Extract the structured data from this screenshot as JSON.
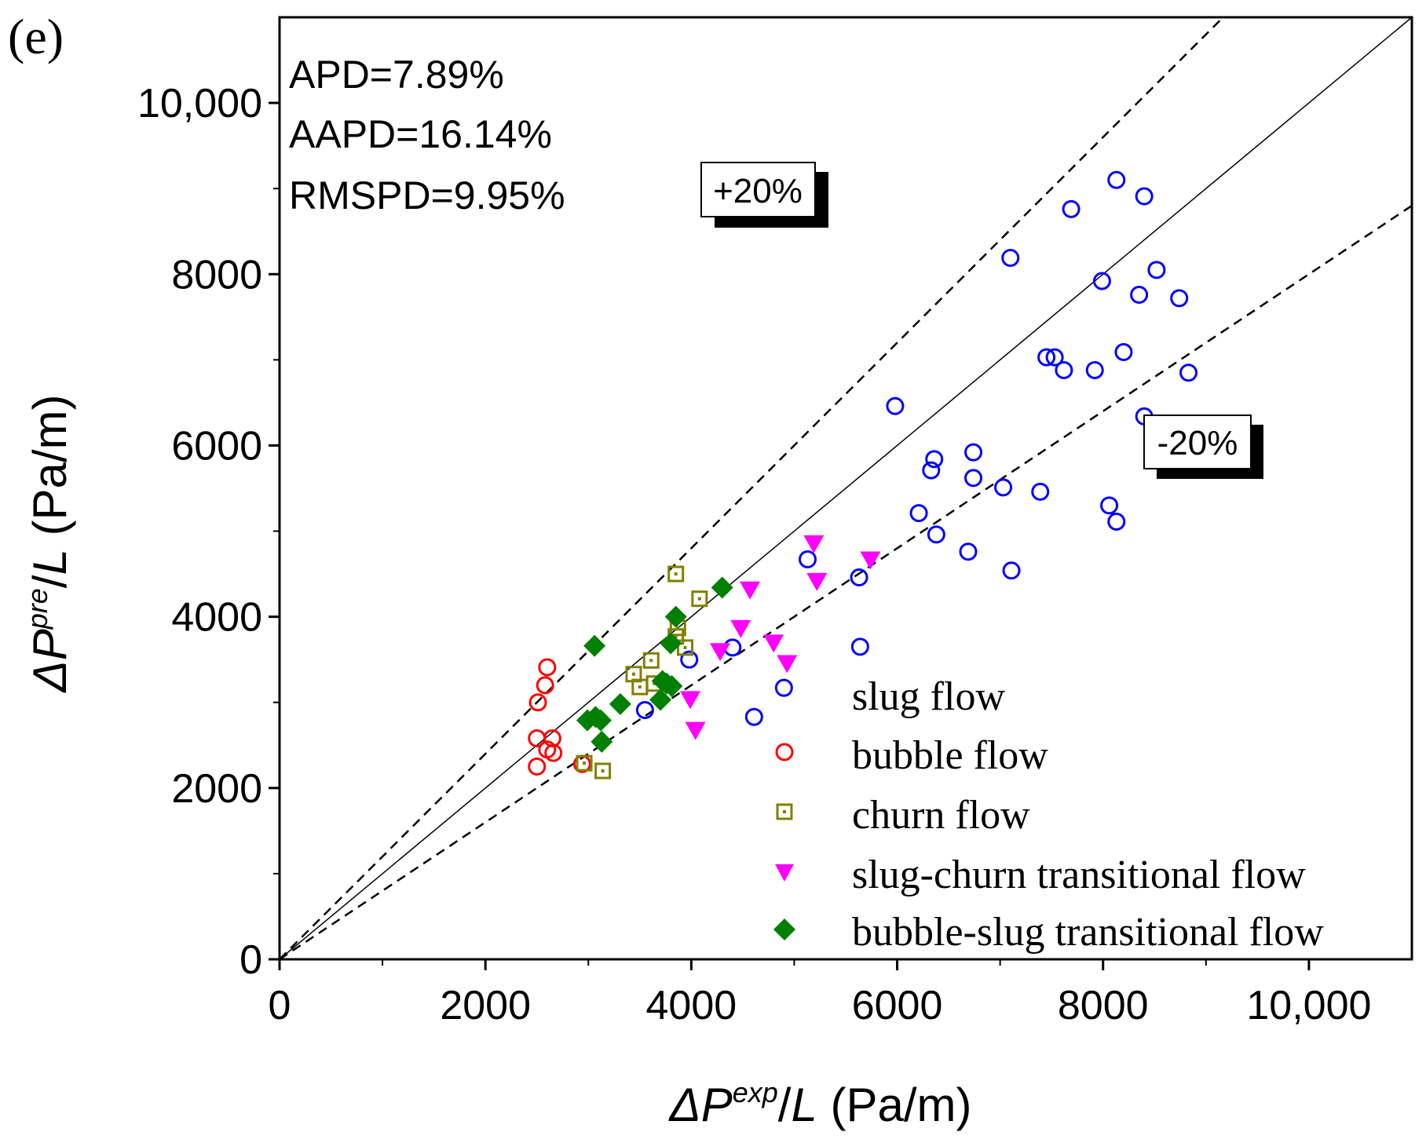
{
  "panel_label": "(e)",
  "stats": {
    "apd": "APD=7.89%",
    "aapd": "AAPD=16.14%",
    "rmspd": "RMSPD=9.95%"
  },
  "boxes": {
    "plus": "+20%",
    "minus": "-20%"
  },
  "axis_labels": {
    "x": {
      "delta": "ΔP",
      "sup": "exp",
      "slash": "/",
      "L": "L",
      "unit": " (Pa/m)"
    },
    "y": {
      "delta": "ΔP",
      "sup": "pre",
      "slash": "/",
      "L": "L",
      "unit": " (Pa/m)"
    }
  },
  "colors": {
    "slug": "#0000ff",
    "bubble": "#ff0000",
    "churn": "#808000",
    "slug_churn": "#ff00ff",
    "bubble_slug": "#007f00",
    "axis": "#000000"
  },
  "chart_data": {
    "type": "scatter",
    "title": "",
    "xlabel": "ΔP^exp/L (Pa/m)",
    "ylabel": "ΔP^pre/L (Pa/m)",
    "xlim": [
      0,
      11000
    ],
    "ylim": [
      0,
      11000
    ],
    "x_ticks": [
      0,
      2000,
      4000,
      6000,
      8000,
      10000
    ],
    "x_tick_labels": [
      "0",
      "2000",
      "4000",
      "6000",
      "8000",
      "10,000"
    ],
    "y_ticks": [
      0,
      2000,
      4000,
      6000,
      8000,
      10000
    ],
    "y_tick_labels": [
      "0",
      "2000",
      "4000",
      "6000",
      "8000",
      "10,000"
    ],
    "reference_lines": [
      {
        "name": "parity",
        "slope": 1.0,
        "style": "solid"
      },
      {
        "name": "+20%",
        "slope": 1.2,
        "style": "dashed"
      },
      {
        "name": "-20%",
        "slope": 0.8,
        "style": "dashed"
      }
    ],
    "legend_position": "bottom-right",
    "series": [
      {
        "name": "slug flow",
        "key": "slug",
        "marker": "circle-open",
        "points": [
          [
            8130,
            9100
          ],
          [
            8400,
            8910
          ],
          [
            7690,
            8760
          ],
          [
            7100,
            8190
          ],
          [
            7990,
            7920
          ],
          [
            8520,
            8050
          ],
          [
            8350,
            7760
          ],
          [
            8740,
            7720
          ],
          [
            7450,
            7030
          ],
          [
            7530,
            7030
          ],
          [
            7620,
            6880
          ],
          [
            7920,
            6880
          ],
          [
            8200,
            7090
          ],
          [
            8830,
            6850
          ],
          [
            5980,
            6460
          ],
          [
            8400,
            6340
          ],
          [
            6740,
            5920
          ],
          [
            6360,
            5840
          ],
          [
            6330,
            5710
          ],
          [
            6740,
            5620
          ],
          [
            7030,
            5510
          ],
          [
            7390,
            5460
          ],
          [
            6210,
            5210
          ],
          [
            8060,
            5300
          ],
          [
            8130,
            5110
          ],
          [
            6380,
            4960
          ],
          [
            6690,
            4760
          ],
          [
            7110,
            4540
          ],
          [
            5130,
            4670
          ],
          [
            5630,
            4460
          ],
          [
            4400,
            3640
          ],
          [
            3980,
            3500
          ],
          [
            5640,
            3650
          ],
          [
            3550,
            2910
          ],
          [
            4900,
            3170
          ],
          [
            4610,
            2830
          ]
        ]
      },
      {
        "name": "bubble flow",
        "key": "bubble",
        "marker": "circle-open",
        "points": [
          [
            2600,
            3410
          ],
          [
            2580,
            3200
          ],
          [
            2510,
            3000
          ],
          [
            2500,
            2580
          ],
          [
            2650,
            2580
          ],
          [
            2600,
            2450
          ],
          [
            2660,
            2410
          ],
          [
            2500,
            2250
          ],
          [
            2940,
            2280
          ]
        ]
      },
      {
        "name": "churn flow",
        "key": "churn",
        "marker": "square-dot",
        "points": [
          [
            3850,
            4500
          ],
          [
            4080,
            4210
          ],
          [
            3870,
            3870
          ],
          [
            3850,
            3770
          ],
          [
            3940,
            3640
          ],
          [
            3610,
            3490
          ],
          [
            3440,
            3330
          ],
          [
            3500,
            3180
          ],
          [
            3640,
            3220
          ],
          [
            2960,
            2290
          ],
          [
            3140,
            2200
          ]
        ]
      },
      {
        "name": "slug-churn transitional flow",
        "key": "slug_churn",
        "marker": "triangle-down",
        "points": [
          [
            5190,
            4860
          ],
          [
            5740,
            4670
          ],
          [
            5220,
            4420
          ],
          [
            4570,
            4320
          ],
          [
            4480,
            3870
          ],
          [
            4280,
            3600
          ],
          [
            4800,
            3700
          ],
          [
            4930,
            3460
          ],
          [
            3990,
            3040
          ],
          [
            4040,
            2680
          ]
        ]
      },
      {
        "name": "bubble-slug transitional flow",
        "key": "bubble_slug",
        "marker": "diamond",
        "points": [
          [
            4300,
            4340
          ],
          [
            3850,
            4000
          ],
          [
            3060,
            3660
          ],
          [
            3800,
            3690
          ],
          [
            3720,
            3250
          ],
          [
            3760,
            3220
          ],
          [
            3810,
            3190
          ],
          [
            3700,
            3030
          ],
          [
            3310,
            2980
          ],
          [
            3070,
            2830
          ],
          [
            2990,
            2790
          ],
          [
            3120,
            2790
          ],
          [
            3130,
            2540
          ]
        ]
      }
    ]
  }
}
